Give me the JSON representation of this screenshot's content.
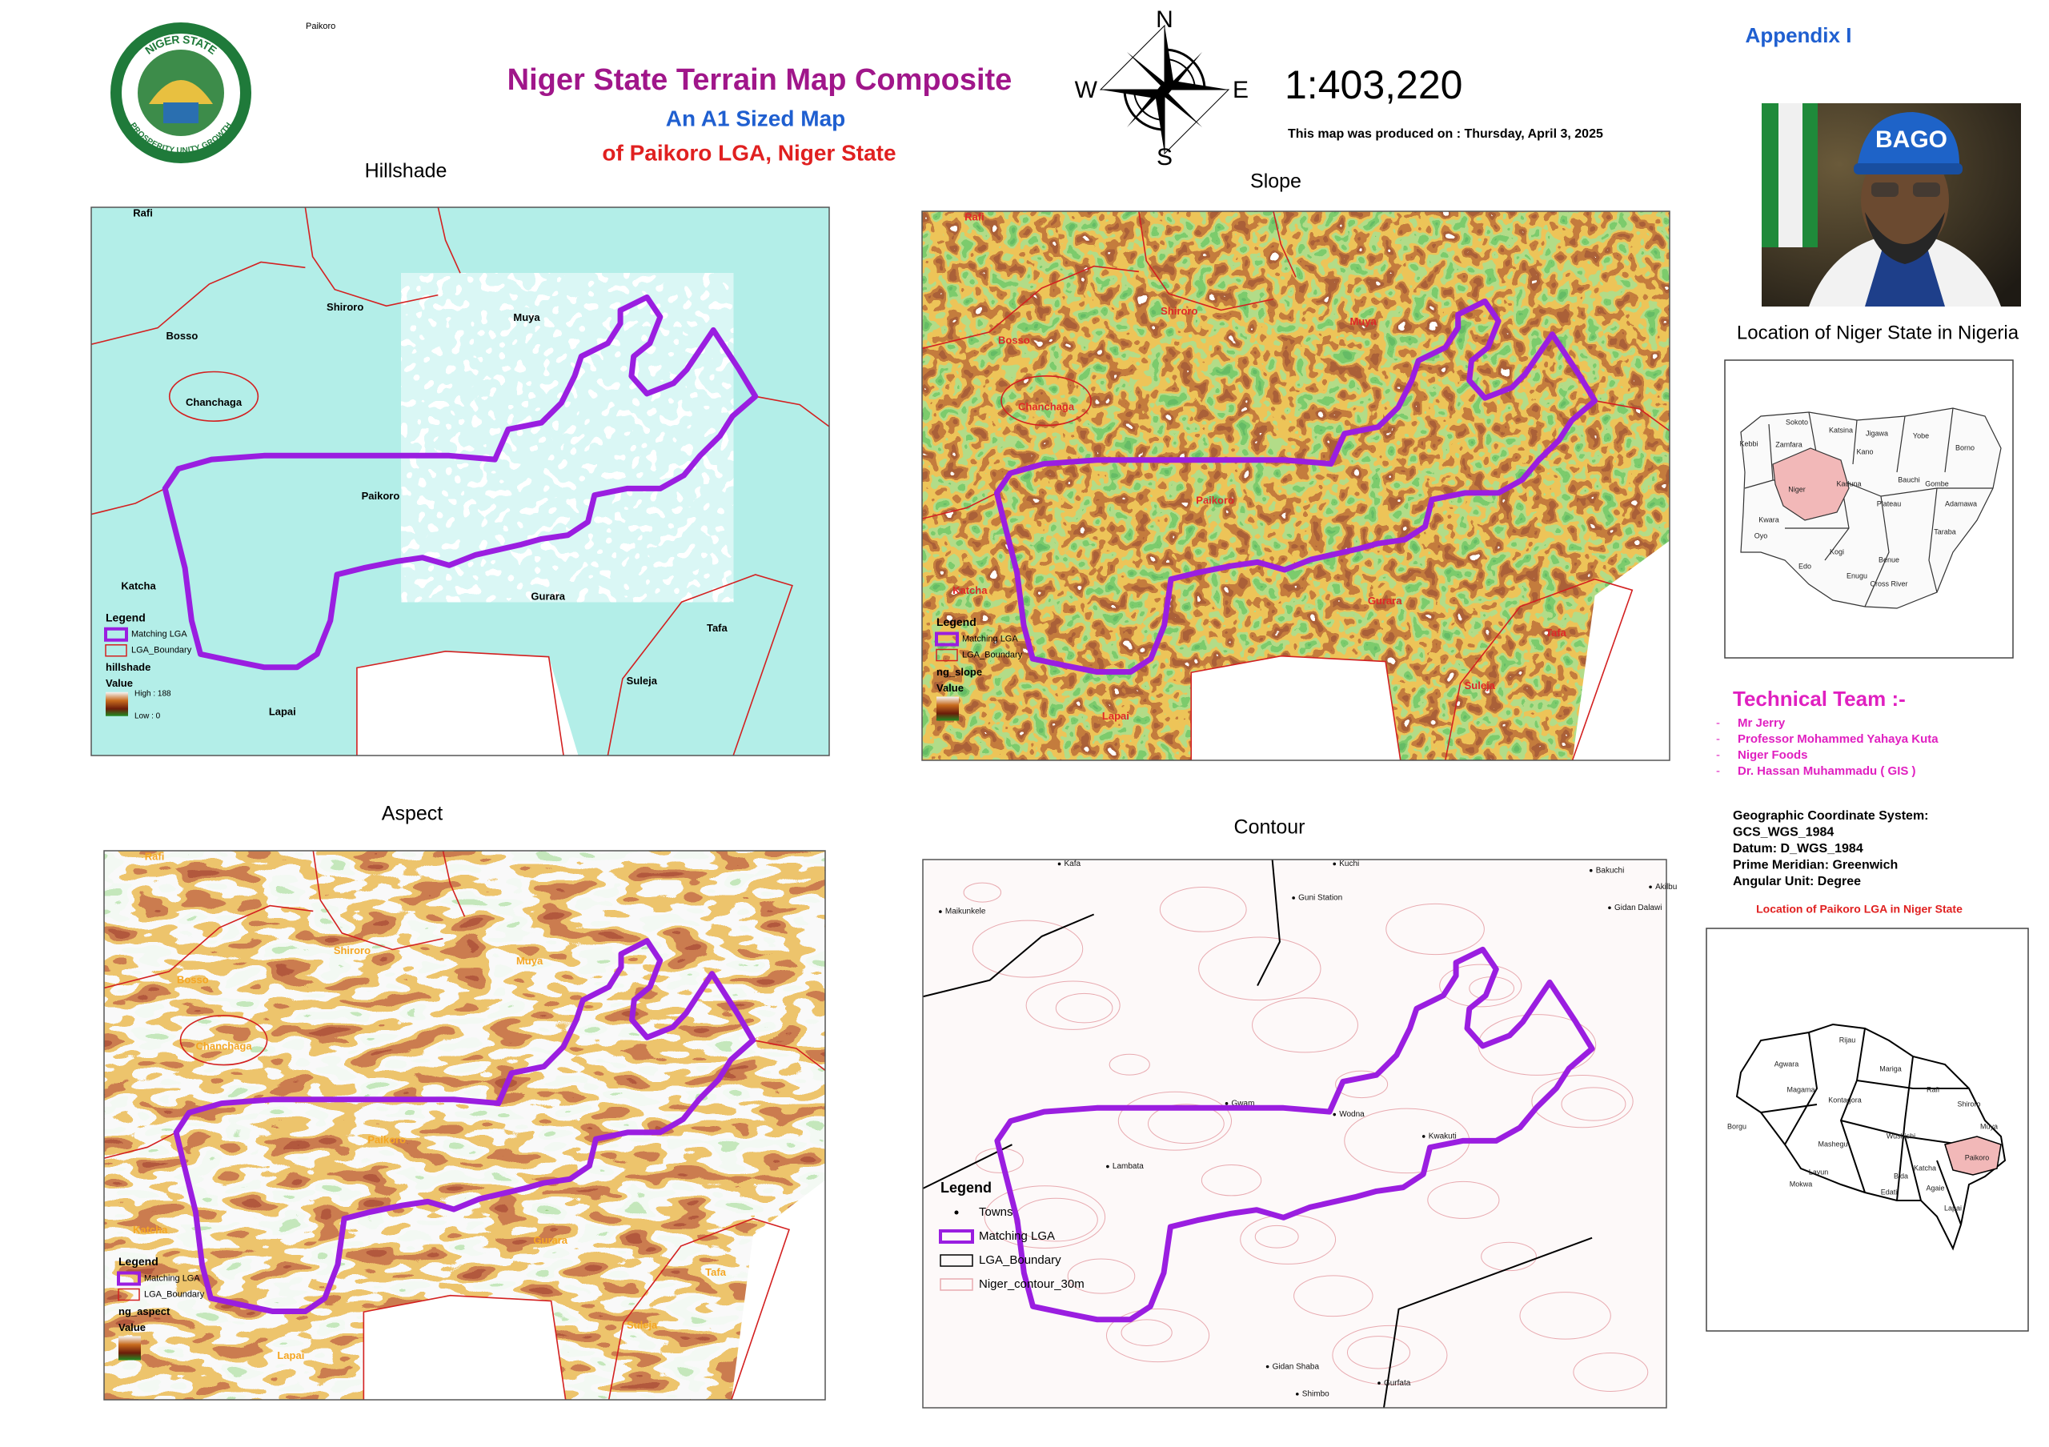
{
  "header": {
    "tag": "Paikoro",
    "title": "Niger State Terrain Map Composite",
    "subtitle": "An A1 Sized Map",
    "subtitle2": "of Paikoro LGA, Niger State",
    "scale": "1:403,220",
    "date": "This map was produced on : Thursday, April 3, 2025",
    "appendix": "Appendix I"
  },
  "logo": {
    "top": "NIGER STATE",
    "bottom": "PROSPERITY UNITY GROWTH"
  },
  "compass": {
    "n": "N",
    "e": "E",
    "s": "S",
    "w": "W"
  },
  "portrait": {
    "cap": "BAGO"
  },
  "panels": [
    {
      "title": "Hillshade",
      "legend": {
        "title": "Legend",
        "items": [
          "Matching LGA",
          "LGA_Boundary"
        ],
        "layer": "hillshade",
        "value": "Value",
        "high": "High : 188",
        "low": "Low : 0"
      }
    },
    {
      "title": "Slope",
      "legend": {
        "title": "Legend",
        "items": [
          "Matching LGA",
          "LGA_Boundary"
        ],
        "layer": "ng_slope",
        "value": "Value"
      }
    },
    {
      "title": "Aspect",
      "legend": {
        "title": "Legend",
        "items": [
          "Matching LGA",
          "LGA_Boundary"
        ],
        "layer": "ng_aspect",
        "value": "Value"
      }
    },
    {
      "title": "Contour",
      "legend": {
        "title": "Legend",
        "items": [
          "Towns",
          "Matching LGA",
          "LGA_Boundary",
          "Niger_contour_30m"
        ]
      }
    }
  ],
  "places": [
    "Rafi",
    "Shiroro",
    "Bosso",
    "Muya",
    "Chanchaga",
    "Paikoro",
    "Katcha",
    "Gurara",
    "Tafa",
    "Suleja",
    "Lapai"
  ],
  "towns": [
    "Kuchi",
    "Gidan Dalawi",
    "Akilbu",
    "Maikunkele",
    "Kafa",
    "Guni Station",
    "Bakuchi",
    "Gwam",
    "Wodna",
    "Gurfata",
    "Gidan Shaba",
    "Shimbo",
    "Lambata",
    "Kwakuti"
  ],
  "nigeria": {
    "title": "Location of Niger State in Nigeria",
    "states": [
      "Sokoto",
      "Katsina",
      "Jigawa",
      "Yobe",
      "Borno",
      "Kebbi",
      "Zamfara",
      "Kano",
      "Niger",
      "Kaduna",
      "Bauchi",
      "Gombe",
      "Kwara",
      "Plateau",
      "Adamawa",
      "Oyo",
      "Kogi",
      "Benue",
      "Taraba",
      "Edo",
      "Enugu",
      "Cross River"
    ]
  },
  "niger": {
    "title": "Location of Paikoro LGA in Niger State",
    "lgas": [
      "Agwara",
      "Rijau",
      "Magama",
      "Mariga",
      "Kontagora",
      "Borgu",
      "Rafi",
      "Shiroro",
      "Mashegu",
      "Wushishi",
      "Muya",
      "Paikoro",
      "Lavun",
      "Mokwa",
      "Bida",
      "Agaie",
      "Lapai",
      "Edati",
      "Katcha"
    ]
  },
  "team": {
    "title": "Technical Team :-",
    "members": [
      "Mr Jerry",
      "Professor Mohammed Yahaya Kuta",
      "Niger Foods",
      "Dr. Hassan Muhammadu ( GIS )"
    ]
  },
  "gcs": {
    "lines": [
      "Geographic Coordinate System:",
      "GCS_WGS_1984",
      "Datum:     D_WGS_1984",
      "Prime Meridian:     Greenwich",
      "Angular Unit:     Degree"
    ]
  }
}
